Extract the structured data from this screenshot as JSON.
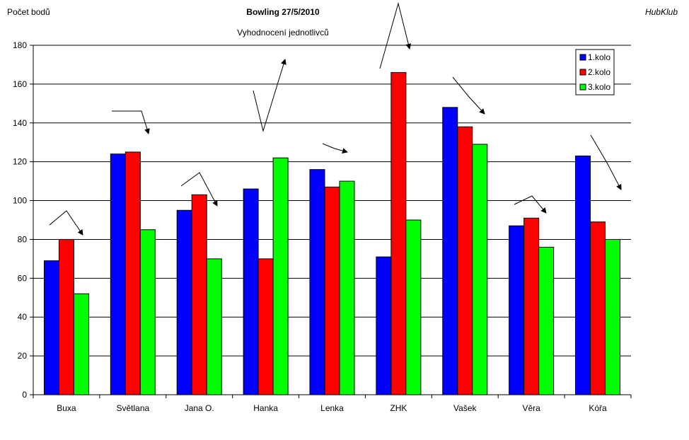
{
  "header": {
    "ylabel": "Počet bodů",
    "title": "Bowling  27/5/2010",
    "subtitle": "Vyhodnocení jednotlivců",
    "brand": "HubKlub"
  },
  "chart_data": {
    "type": "bar",
    "title": "Bowling  27/5/2010",
    "subtitle": "Vyhodnocení jednotlivců",
    "ylabel": "Počet bodů",
    "xlabel": "",
    "ylim": [
      0,
      180
    ],
    "yticks": [
      0,
      20,
      40,
      60,
      80,
      100,
      120,
      140,
      160,
      180
    ],
    "grid": true,
    "legend_position": "top-right",
    "categories": [
      "Buxa",
      "Světlana",
      "Jana O.",
      "Hanka",
      "Lenka",
      "ZHK",
      "Vašek",
      "Věra",
      "Kóřa"
    ],
    "series": [
      {
        "name": "1.kolo",
        "color": "#0000ff",
        "values": [
          69,
          124,
          95,
          106,
          116,
          71,
          148,
          87,
          123
        ]
      },
      {
        "name": "2.kolo",
        "color": "#ff0000",
        "values": [
          80,
          125,
          103,
          70,
          107,
          166,
          138,
          91,
          89
        ]
      },
      {
        "name": "3.kolo",
        "color": "#00ff00",
        "values": [
          52,
          85,
          70,
          122,
          110,
          90,
          129,
          76,
          80
        ]
      }
    ]
  }
}
